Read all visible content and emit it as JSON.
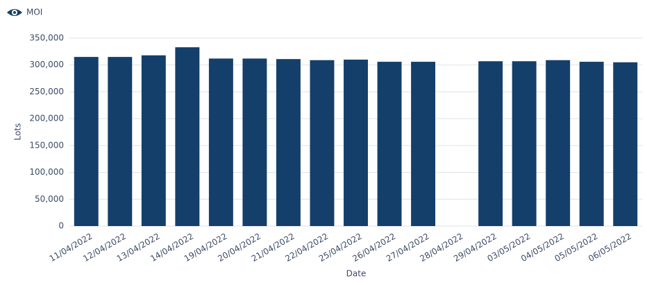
{
  "chart_data": {
    "type": "bar",
    "x_label": "Date",
    "y_label": "Lots",
    "categories": [
      "11/04/2022",
      "12/04/2022",
      "13/04/2022",
      "14/04/2022",
      "19/04/2022",
      "20/04/2022",
      "21/04/2022",
      "22/04/2022",
      "25/04/2022",
      "26/04/2022",
      "27/04/2022",
      "28/04/2022",
      "29/04/2022",
      "03/05/2022",
      "04/05/2022",
      "05/05/2022",
      "06/05/2022"
    ],
    "series": [
      {
        "name": "MOI",
        "color": "#143f6b",
        "values": [
          315000,
          315000,
          318000,
          333000,
          312000,
          312000,
          311000,
          309000,
          310000,
          306000,
          306000,
          null,
          307000,
          307000,
          309000,
          306000,
          305000
        ]
      }
    ],
    "ylim": [
      0,
      350000
    ],
    "yticks": [
      0,
      {
        "value": 50000,
        "label": "50,000"
      },
      {
        "value": 100000,
        "label": "100,000"
      },
      {
        "value": 150000,
        "label": "150,000"
      },
      {
        "value": 200000,
        "label": "200,000"
      },
      {
        "value": 250000,
        "label": "250,000"
      },
      {
        "value": 300000,
        "label": "300,000"
      },
      {
        "value": 350000,
        "label": "350,000"
      }
    ],
    "grid": true
  }
}
